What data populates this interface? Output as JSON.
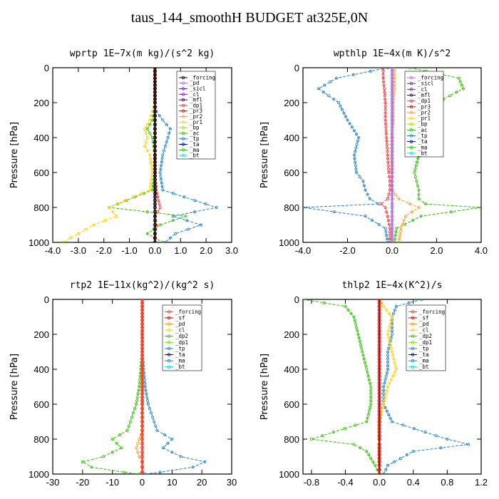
{
  "title": "taus_144_smoothH  BUDGET at325E,0N",
  "chart_data": [
    {
      "type": "line",
      "title": "wprtp  1E−7x(m kg)/(s^2 kg)",
      "ylabel": "Pressure [hPa]",
      "xlim": [
        -4,
        3
      ],
      "ylim": [
        1000,
        0
      ],
      "xticks": [
        "-4.0",
        "-3.0",
        "-2.0",
        "-1.0",
        "0.0",
        "1.0",
        "2.0",
        "3.0"
      ],
      "xtick_values": [
        -4,
        -3,
        -2,
        -1,
        0,
        1,
        2,
        3
      ],
      "yticks": [
        "0",
        "200",
        "400",
        "600",
        "800",
        "1000"
      ],
      "ytick_values": [
        0,
        200,
        400,
        600,
        800,
        1000
      ],
      "legend": [
        "_forcing",
        "_pd",
        "_sicl",
        "_cl",
        "_mfl",
        "_dp1",
        "_pr3",
        "_pr2",
        "_pr1",
        "_bp",
        "_ac",
        "_tp",
        "_ta",
        "_ma",
        "_bt"
      ],
      "legend_colors": [
        "#000000",
        "#b070e0",
        "#5a2ea0",
        "#7a1ea0",
        "#400070",
        "#ff3030",
        "#c80000",
        "#ffa020",
        "#ffd000",
        "#a0e000",
        "#30c000",
        "#2080c8",
        "#000080",
        "#30c000",
        "#00e0e0"
      ],
      "series": [
        {
          "name": "_ma",
          "color": "#30c000",
          "x": [
            0,
            0,
            0,
            -0.05,
            -0.1,
            -0.3,
            -0.1,
            -0.05,
            0,
            0,
            -0.1,
            -1.8,
            1.2,
            0.2,
            -0.3,
            0.3
          ],
          "y": [
            0,
            100,
            200,
            250,
            300,
            350,
            400,
            450,
            500,
            600,
            700,
            800,
            850,
            900,
            950,
            1000
          ]
        },
        {
          "name": "_tp",
          "color": "#2080c8",
          "x": [
            0,
            0,
            0,
            0.05,
            0.3,
            0.6,
            0.5,
            0.4,
            0.3,
            0.2,
            0.3,
            2.4,
            0.7,
            1.8,
            0.8,
            0.4
          ],
          "y": [
            0,
            100,
            200,
            250,
            300,
            350,
            400,
            450,
            500,
            600,
            700,
            800,
            850,
            900,
            950,
            1000
          ]
        },
        {
          "name": "_pr1",
          "color": "#ffd000",
          "x": [
            0,
            0,
            0,
            -0.1,
            -0.2,
            -0.4,
            -0.3,
            -0.4,
            -0.2,
            -0.1,
            -0.2,
            -1.8,
            -1.5,
            -2.4,
            -3.0,
            -3.6
          ],
          "y": [
            0,
            100,
            200,
            250,
            300,
            350,
            400,
            450,
            500,
            600,
            700,
            800,
            850,
            900,
            950,
            1000
          ]
        },
        {
          "name": "_dp1",
          "color": "#ff3030",
          "x": [
            0,
            0,
            0,
            0,
            0,
            0,
            0,
            0,
            0,
            0,
            0.05,
            0.2,
            0,
            0.05,
            0,
            0
          ],
          "y": [
            0,
            100,
            200,
            250,
            300,
            350,
            400,
            450,
            500,
            600,
            700,
            800,
            850,
            900,
            950,
            1000
          ]
        },
        {
          "name": "_forcing",
          "color": "#000000",
          "x": [
            0,
            0,
            0,
            0,
            0,
            0,
            0,
            0,
            0,
            0,
            0,
            0,
            0,
            0,
            0,
            0
          ],
          "y": [
            0,
            100,
            200,
            250,
            300,
            350,
            400,
            450,
            500,
            600,
            700,
            800,
            850,
            900,
            950,
            1000
          ]
        }
      ]
    },
    {
      "type": "line",
      "title": "wpthlp  1E−4x(m K)/s^2",
      "ylabel": "Pressure [hPa]",
      "xlim": [
        -4,
        4
      ],
      "ylim": [
        1000,
        0
      ],
      "xticks": [
        "-4.0",
        "-2.0",
        "0.0",
        "2.0",
        "4.0"
      ],
      "xtick_values": [
        -4,
        -2,
        0,
        2,
        4
      ],
      "yticks": [
        "0",
        "200",
        "400",
        "600",
        "800",
        "1000"
      ],
      "ytick_values": [
        0,
        200,
        400,
        600,
        800,
        1000
      ],
      "legend": [
        "_forcing",
        "_sicl",
        "_cl",
        "_mfl",
        "_dp1",
        "_pr3",
        "_pr2",
        "_pr1",
        "_bp",
        "_ac",
        "_tp",
        "_ta",
        "_ma",
        "_bt"
      ],
      "legend_colors": [
        "#b070e0",
        "#5a2ea0",
        "#7a1ea0",
        "#400070",
        "#ff3030",
        "#c80000",
        "#ffa020",
        "#ffd000",
        "#a0e000",
        "#30c000",
        "#2080c8",
        "#000080",
        "#30c000",
        "#00e0e0"
      ],
      "series": [
        {
          "name": "_tp",
          "color": "#2080c8",
          "x": [
            -0.2,
            -2.5,
            -3.3,
            -2.4,
            -2.0,
            -1.5,
            -1.7,
            -1.6,
            -1.3,
            -1.2,
            -1.0,
            -0.6,
            -4.0,
            -1.2,
            -0.3,
            -0.2
          ],
          "y": [
            0,
            60,
            120,
            200,
            300,
            400,
            500,
            600,
            650,
            700,
            750,
            780,
            800,
            850,
            920,
            1000
          ]
        },
        {
          "name": "_ma",
          "color": "#30c000",
          "x": [
            0.8,
            3.0,
            3.2,
            2.0,
            1.5,
            1.3,
            1.2,
            1.0,
            1.1,
            1.2,
            1.2,
            1.5,
            4.0,
            1.3,
            0.2,
            0.1
          ],
          "y": [
            0,
            60,
            120,
            200,
            300,
            400,
            500,
            600,
            650,
            700,
            750,
            780,
            800,
            850,
            920,
            1000
          ]
        },
        {
          "name": "_pr2",
          "color": "#ffa020",
          "x": [
            0.1,
            0.1,
            0.1,
            0.05,
            0.05,
            0,
            0,
            0,
            0,
            0,
            0.3,
            0.8,
            1.2,
            0.6,
            0.4,
            0.3
          ],
          "y": [
            0,
            60,
            120,
            200,
            300,
            400,
            500,
            600,
            650,
            700,
            750,
            780,
            800,
            850,
            920,
            1000
          ]
        },
        {
          "name": "_dp1",
          "color": "#ff3030",
          "x": [
            -0.4,
            -0.4,
            -0.35,
            -0.3,
            -0.3,
            -0.25,
            -0.2,
            -0.15,
            -0.1,
            -0.1,
            -0.2,
            -0.5,
            -0.3,
            -0.2,
            -0.1,
            -0.1
          ],
          "y": [
            0,
            60,
            120,
            200,
            300,
            400,
            500,
            600,
            650,
            700,
            750,
            780,
            800,
            850,
            920,
            1000
          ]
        },
        {
          "name": "_forcing",
          "color": "#b070e0",
          "x": [
            0,
            0,
            0,
            0,
            0,
            0,
            0,
            0,
            0,
            0,
            0,
            0,
            0,
            0,
            0,
            0
          ],
          "y": [
            0,
            60,
            120,
            200,
            300,
            400,
            500,
            600,
            650,
            700,
            750,
            780,
            800,
            850,
            920,
            1000
          ]
        }
      ]
    },
    {
      "type": "line",
      "title": "rtp2  1E−11x(kg^2)/(kg^2 s)",
      "ylabel": "Pressure [hPa]",
      "xlim": [
        -30,
        30
      ],
      "ylim": [
        1000,
        0
      ],
      "xticks": [
        "-30",
        "-20",
        "-10",
        "0",
        "10",
        "20",
        "30"
      ],
      "xtick_values": [
        -30,
        -20,
        -10,
        0,
        10,
        20,
        30
      ],
      "yticks": [
        "0",
        "200",
        "400",
        "600",
        "800",
        "1000"
      ],
      "ytick_values": [
        0,
        200,
        400,
        600,
        800,
        1000
      ],
      "legend": [
        "_forcing",
        "_sf",
        "_pd",
        "_cl",
        "_dp2",
        "_dp1",
        "_tp",
        "_ta",
        "_ma",
        "_bt"
      ],
      "legend_colors": [
        "#ff3030",
        "#c80000",
        "#ffa020",
        "#ffd000",
        "#30c000",
        "#80e000",
        "#2080c8",
        "#000080",
        "#2080c8",
        "#00e0e0"
      ],
      "series": [
        {
          "name": "_dp1",
          "color": "#30c000",
          "x": [
            0,
            0,
            0,
            -0.5,
            -1,
            -2,
            -3,
            -4,
            -5,
            -10,
            -7,
            -13,
            -20,
            -17,
            -6,
            -1
          ],
          "y": [
            0,
            200,
            300,
            400,
            500,
            600,
            650,
            700,
            750,
            800,
            850,
            900,
            930,
            960,
            990,
            1000
          ]
        },
        {
          "name": "_tp",
          "color": "#2080c8",
          "x": [
            0,
            0,
            0,
            0.5,
            1,
            2,
            3,
            4,
            5,
            10,
            7,
            13,
            21,
            17,
            6,
            1
          ],
          "y": [
            0,
            200,
            300,
            400,
            500,
            600,
            650,
            700,
            750,
            800,
            850,
            900,
            930,
            960,
            990,
            1000
          ]
        },
        {
          "name": "_pd",
          "color": "#ffa020",
          "x": [
            0,
            0,
            0,
            0,
            0,
            0,
            0,
            0,
            0,
            -1,
            -2,
            -1,
            0,
            0,
            0,
            0
          ],
          "y": [
            0,
            200,
            300,
            400,
            500,
            600,
            650,
            700,
            750,
            800,
            850,
            900,
            930,
            960,
            990,
            1000
          ]
        },
        {
          "name": "_forcing",
          "color": "#ff3030",
          "x": [
            0,
            0,
            0,
            0,
            0,
            0,
            0,
            0,
            0,
            0,
            0,
            0,
            0,
            0,
            0,
            0
          ],
          "y": [
            0,
            200,
            300,
            400,
            500,
            600,
            650,
            700,
            750,
            800,
            850,
            900,
            930,
            960,
            990,
            1000
          ]
        }
      ]
    },
    {
      "type": "line",
      "title": "thlp2  1E−4x(K^2)/s",
      "ylabel": "Pressure [hPa]",
      "xlim": [
        -0.9,
        1.2
      ],
      "ylim": [
        1000,
        0
      ],
      "xticks": [
        "-0.8",
        "-0.4",
        "0.0",
        "0.4",
        "0.8",
        "1.2"
      ],
      "xtick_values": [
        -0.8,
        -0.4,
        0,
        0.4,
        0.8,
        1.2
      ],
      "yticks": [
        "0",
        "200",
        "400",
        "600",
        "800",
        "1000"
      ],
      "ytick_values": [
        0,
        200,
        400,
        600,
        800,
        1000
      ],
      "legend": [
        "_forcing",
        "_sf",
        "_pd",
        "_cl",
        "_dp2",
        "_dp1",
        "_tp",
        "_ta",
        "_ma",
        "_bt"
      ],
      "legend_colors": [
        "#ff3030",
        "#c80000",
        "#ffa020",
        "#ffd000",
        "#30c000",
        "#80e000",
        "#2080c8",
        "#000080",
        "#2080c8",
        "#00e0e0"
      ],
      "series": [
        {
          "name": "_dp1",
          "color": "#30c000",
          "x": [
            -0.9,
            -0.4,
            -0.3,
            -0.25,
            -0.2,
            -0.15,
            -0.1,
            -0.1,
            -0.15,
            -0.8,
            -0.3,
            -0.15,
            -0.05,
            0
          ],
          "y": [
            0,
            40,
            100,
            200,
            300,
            400,
            500,
            600,
            700,
            800,
            830,
            870,
            950,
            1000
          ]
        },
        {
          "name": "_tp",
          "color": "#2080c8",
          "x": [
            0.5,
            0.2,
            0.15,
            0.15,
            0.1,
            0.1,
            0.05,
            0.05,
            0.15,
            0.8,
            1.05,
            0.4,
            0.1,
            0.05
          ],
          "y": [
            0,
            40,
            100,
            200,
            300,
            400,
            500,
            600,
            700,
            800,
            830,
            870,
            950,
            1000
          ]
        },
        {
          "name": "_cl",
          "color": "#ffd000",
          "x": [
            0,
            0.05,
            0.15,
            0.1,
            0.15,
            0.2,
            0.1,
            0.05,
            0,
            0,
            0,
            0,
            0,
            0
          ],
          "y": [
            0,
            40,
            100,
            200,
            300,
            400,
            500,
            600,
            700,
            800,
            830,
            870,
            950,
            1000
          ]
        },
        {
          "name": "_forcing",
          "color": "#c80000",
          "x": [
            0,
            0,
            0,
            0,
            0,
            0,
            0,
            0,
            0,
            0,
            0,
            0,
            0,
            0
          ],
          "y": [
            0,
            40,
            100,
            200,
            300,
            400,
            500,
            600,
            700,
            800,
            830,
            870,
            950,
            1000
          ]
        }
      ]
    }
  ]
}
